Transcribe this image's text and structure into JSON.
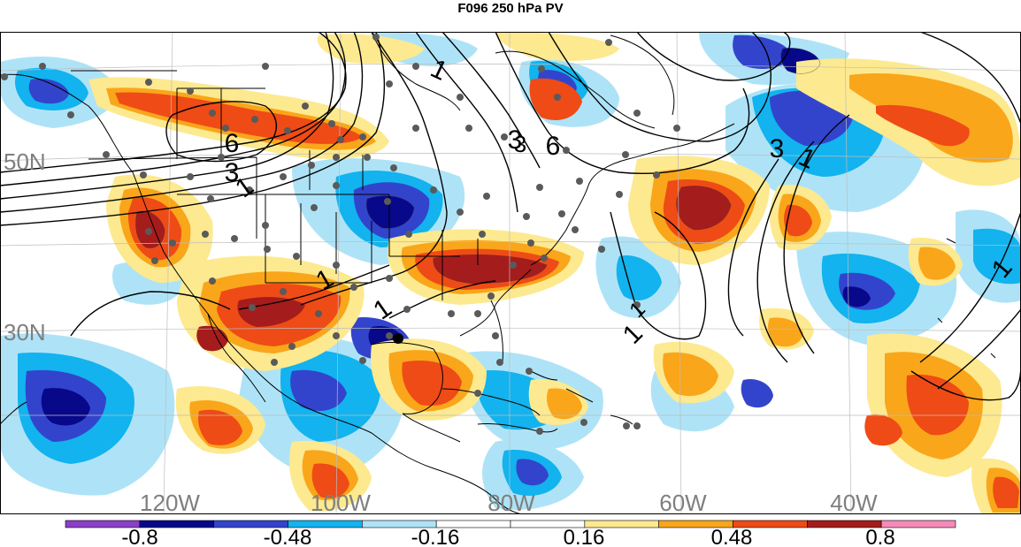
{
  "title": "F096 250 hPa PV",
  "latitude_labels": [
    "50N",
    "30N"
  ],
  "longitude_labels": [
    "120W",
    "100W",
    "80W",
    "60W",
    "40W"
  ],
  "contour_labels": [
    "6",
    "6",
    "3",
    "3",
    "3",
    "1",
    "1",
    "1",
    "1",
    "1",
    "1",
    "1",
    "3",
    "1"
  ],
  "colorbar": {
    "tick_labels": [
      "-0.8",
      "-0.48",
      "-0.16",
      "0.16",
      "0.48",
      "0.8"
    ],
    "colors": [
      "#8b3fc9",
      "#08088a",
      "#3344cc",
      "#12b3ee",
      "#aee3f7",
      "#ffffff",
      "#ffffff",
      "#fde98f",
      "#f9a61b",
      "#ef4b16",
      "#a51c1c",
      "#f58ab8"
    ]
  },
  "palette": {
    "neg_strong": "#08088a",
    "neg_mid": "#3344cc",
    "neg_weak": "#12b3ee",
    "neg_faint": "#aee3f7",
    "pos_faint": "#fde98f",
    "pos_weak": "#f9a61b",
    "pos_mid": "#ef4b16",
    "pos_strong": "#a51c1c",
    "dots": "#5a5a5a",
    "label_gray": "#7f7f7f"
  }
}
